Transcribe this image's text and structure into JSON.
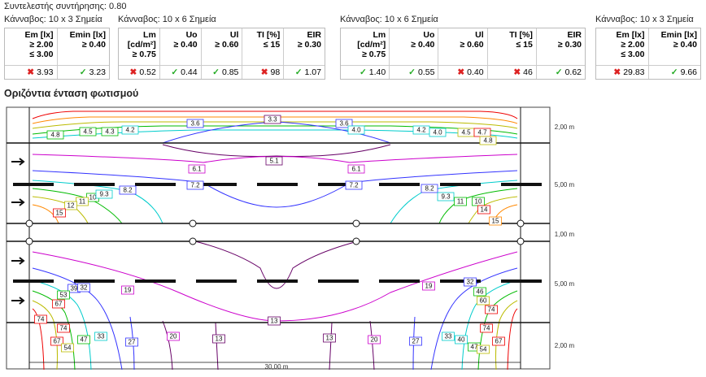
{
  "maintenance": "Συντελεστής συντήρησης: 0.80",
  "tables": [
    {
      "grid": "Κάνναβος: 10 x 3 Σημεία",
      "columns": [
        {
          "header": [
            "Em [lx]",
            "≥ 2.00",
            "≤ 3.00"
          ],
          "value": "3.93",
          "status": "fail"
        },
        {
          "header": [
            "Emin [lx]",
            "≥ 0.40"
          ],
          "value": "3.23",
          "status": "pass"
        }
      ]
    },
    {
      "grid": "Κάνναβος: 10 x 6 Σημεία",
      "columns": [
        {
          "header": [
            "Lm",
            "[cd/m²]",
            "≥ 0.75"
          ],
          "value": "0.52",
          "status": "fail"
        },
        {
          "header": [
            "Uo",
            "≥ 0.40"
          ],
          "value": "0.44",
          "status": "pass"
        },
        {
          "header": [
            "Ul",
            "≥ 0.60"
          ],
          "value": "0.85",
          "status": "pass"
        },
        {
          "header": [
            "TI [%]",
            "≤ 15"
          ],
          "value": "98",
          "status": "fail"
        },
        {
          "header": [
            "EIR",
            "≥ 0.30"
          ],
          "value": "1.07",
          "status": "pass"
        }
      ]
    },
    {
      "grid": "Κάνναβος: 10 x 6 Σημεία",
      "columns": [
        {
          "header": [
            "Lm",
            "[cd/m²]",
            "≥ 0.75"
          ],
          "value": "1.40",
          "status": "pass"
        },
        {
          "header": [
            "Uo",
            "≥ 0.40"
          ],
          "value": "0.55",
          "status": "pass"
        },
        {
          "header": [
            "Ul",
            "≥ 0.60"
          ],
          "value": "0.40",
          "status": "fail"
        },
        {
          "header": [
            "TI [%]",
            "≤ 15"
          ],
          "value": "46",
          "status": "fail"
        },
        {
          "header": [
            "EIR",
            "≥ 0.30"
          ],
          "value": "0.62",
          "status": "pass"
        }
      ]
    },
    {
      "grid": "Κάνναβος: 10 x 3 Σημεία",
      "columns": [
        {
          "header": [
            "Em [lx]",
            "≥ 2.00",
            "≤ 3.00"
          ],
          "value": "29.83",
          "status": "fail"
        },
        {
          "header": [
            "Emin [lx]",
            "≥ 0.40"
          ],
          "value": "9.66",
          "status": "pass"
        }
      ]
    }
  ],
  "section_title": "Οριζόντια ένταση φωτισμού",
  "plot": {
    "contour_labels": [
      "4.8",
      "4.5",
      "4.3",
      "4.2",
      "3.6",
      "3.3",
      "3.6",
      "4.0",
      "4.2",
      "4.0",
      "4.5",
      "4.7",
      "4.8",
      "5.1",
      "6.1",
      "6.1",
      "7.2",
      "7.2",
      "8.2",
      "8.2",
      "9.3",
      "10",
      "11",
      "12",
      "11",
      "10",
      "9.3",
      "14",
      "15",
      "15",
      "39",
      "32",
      "19",
      "19",
      "32",
      "46",
      "53",
      "60",
      "67",
      "74",
      "13",
      "74",
      "74",
      "67",
      "54",
      "47",
      "33",
      "27",
      "20",
      "13",
      "13",
      "20",
      "27",
      "33",
      "40",
      "74",
      "47",
      "54",
      "67"
    ],
    "dimensions": [
      "2,00 m",
      "5,00 m",
      "1,00 m",
      "5,00 m",
      "2,00 m"
    ],
    "length": "30,00 m"
  }
}
